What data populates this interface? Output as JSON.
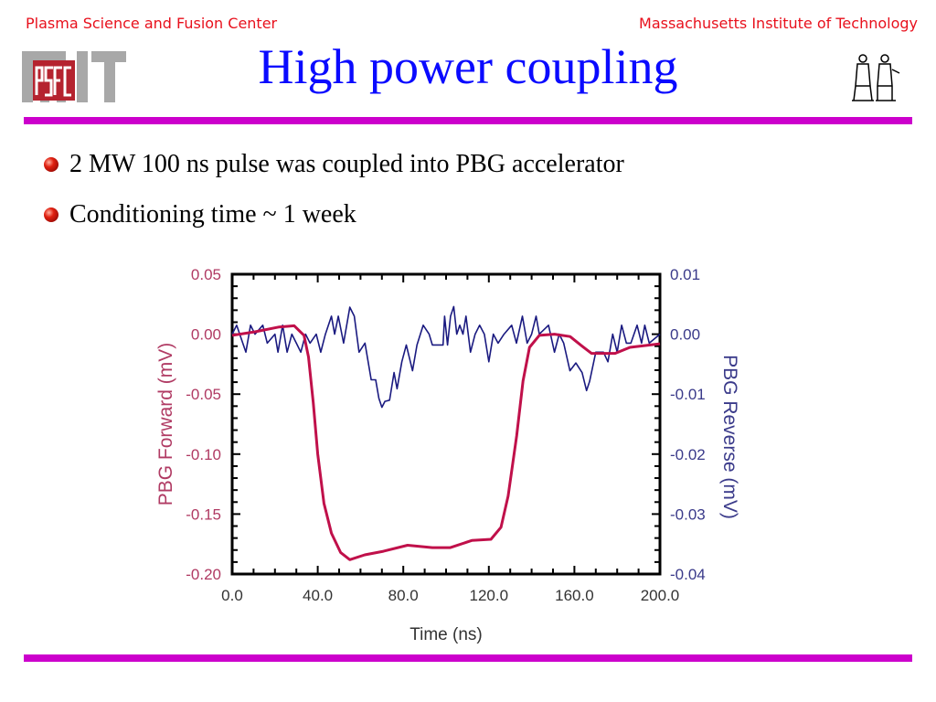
{
  "header": {
    "left": "Plasma Science and Fusion Center",
    "right": "Massachusetts Institute of Technology",
    "title": "High power coupling",
    "logo_left": "MIT PSFC",
    "logo_right": "MIT seal figures"
  },
  "bullets": [
    "2 MW 100 ns pulse was coupled into PBG accelerator",
    "Conditioning time  ~ 1 week"
  ],
  "colors": {
    "header_text": "#e8101c",
    "title": "#0a0aff",
    "divider": "#cc00cc",
    "forward_series": "#c0104a",
    "reverse_series": "#1a1a80",
    "left_axis_text": "#b03a63",
    "right_axis_text": "#3a3a8a"
  },
  "chart_data": {
    "type": "line",
    "title": "",
    "xlabel": "Time (ns)",
    "ylabel_left": "PBG Forward (mV)",
    "ylabel_right": "PBG Reverse (mV)",
    "xlim": [
      0,
      200
    ],
    "ylim_left": [
      -0.2,
      0.05
    ],
    "ylim_right": [
      -0.04,
      0.01
    ],
    "x_ticks": [
      "0.0",
      "40.0",
      "80.0",
      "120.0",
      "160.0",
      "200.0"
    ],
    "y_ticks_left": [
      "0.05",
      "0.00",
      "-0.05",
      "-0.10",
      "-0.15",
      "-0.20"
    ],
    "y_ticks_right": [
      "0.01",
      "0.00",
      "-0.01",
      "-0.02",
      "-0.03",
      "-0.04"
    ],
    "grid": false,
    "legend": "none",
    "series": [
      {
        "axis": "left",
        "x": [
          0,
          10.7,
          22,
          29,
          33.6,
          35.7,
          37.9,
          40,
          42.9,
          46.4,
          50.7,
          55,
          62,
          70.7,
          82,
          93.6,
          102,
          112,
          121,
          125.7,
          129,
          133,
          136,
          139,
          143.6,
          150.7,
          158,
          163.6,
          168,
          179,
          186,
          200
        ],
        "y": [
          -0.001,
          0.002,
          0.006,
          0.007,
          -0.001,
          -0.019,
          -0.057,
          -0.1,
          -0.141,
          -0.166,
          -0.182,
          -0.188,
          -0.184,
          -0.181,
          -0.176,
          -0.178,
          -0.178,
          -0.172,
          -0.171,
          -0.161,
          -0.135,
          -0.085,
          -0.039,
          -0.011,
          -0.001,
          0.0,
          -0.002,
          -0.01,
          -0.016,
          -0.016,
          -0.011,
          -0.008
        ]
      },
      {
        "axis": "right",
        "x": [
          0,
          2.1,
          6.4,
          8.6,
          10.7,
          14.3,
          16.4,
          20,
          21.4,
          23.6,
          25.7,
          27.9,
          30,
          32.1,
          34.3,
          36.4,
          39.3,
          41.4,
          43.6,
          46.4,
          47.9,
          49.6,
          52.1,
          55,
          57.1,
          59.3,
          62.1,
          65,
          67.1,
          68.6,
          70,
          71.4,
          73.6,
          75.7,
          77.1,
          79.3,
          81.4,
          84.3,
          86.4,
          89.3,
          92.1,
          93.6,
          98.6,
          99.3,
          100.7,
          102.1,
          103.6,
          105,
          106.4,
          107.9,
          109.3,
          111.4,
          113.6,
          115.7,
          117.9,
          120,
          122.1,
          124.3,
          127.1,
          130.7,
          132.9,
          135.7,
          137.9,
          140,
          142.1,
          143.6,
          147.9,
          150.7,
          152.9,
          155,
          157.9,
          160.7,
          163.6,
          165.7,
          167.1,
          170,
          173.6,
          175.7,
          177.9,
          180,
          182.1,
          184.3,
          186.4,
          189.3,
          191.4,
          192.9,
          195,
          200
        ],
        "y": [
          0,
          0.0015,
          -0.003,
          0.0015,
          0,
          0.0015,
          -0.0015,
          0,
          -0.003,
          0.0015,
          -0.003,
          0,
          -0.0015,
          -0.003,
          0,
          -0.0015,
          0,
          -0.003,
          0,
          0.003,
          0,
          0.003,
          -0.0015,
          0.0045,
          0.003,
          -0.003,
          -0.0015,
          -0.0076,
          -0.0076,
          -0.0107,
          -0.0122,
          -0.0112,
          -0.011,
          -0.0064,
          -0.0091,
          -0.0046,
          -0.0018,
          -0.0061,
          -0.0018,
          0.0015,
          0,
          -0.0018,
          -0.0018,
          0.003,
          -0.0018,
          0.003,
          0.0046,
          0,
          0.0015,
          0,
          0.003,
          -0.003,
          0,
          0.0015,
          0,
          -0.0046,
          0,
          -0.0015,
          0,
          0.0015,
          -0.0015,
          0.003,
          -0.0015,
          0,
          0.003,
          0,
          0.0015,
          -0.003,
          0,
          -0.0015,
          -0.0061,
          -0.0048,
          -0.0064,
          -0.0094,
          -0.0079,
          -0.003,
          -0.003,
          -0.0046,
          0,
          -0.003,
          0.0015,
          -0.0015,
          -0.0015,
          0.0015,
          -0.0015,
          0.0015,
          -0.0015,
          0
        ]
      }
    ]
  }
}
